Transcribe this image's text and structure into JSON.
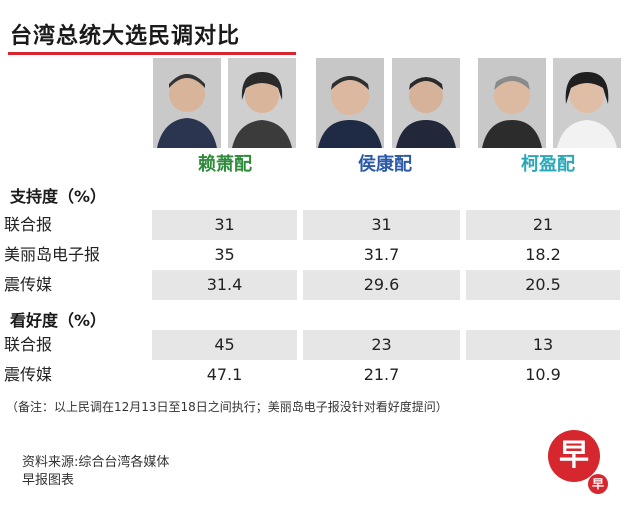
{
  "title": "台湾总统大选民调对比",
  "pairs": [
    "赖萧配",
    "侯康配",
    "柯盈配"
  ],
  "colors": {
    "accent": "#d6262e",
    "lai": "#2e8b3a",
    "hou": "#2c5aa8",
    "ko": "#2aa7b8",
    "row_shade": "#e6e6e6"
  },
  "support": {
    "heading": "支持度（%）",
    "rows": [
      {
        "label": "联合报",
        "values": [
          "31",
          "31",
          "21"
        ]
      },
      {
        "label": "美丽岛电子报",
        "values": [
          "35",
          "31.7",
          "18.2"
        ]
      },
      {
        "label": "震传媒",
        "values": [
          "31.4",
          "29.6",
          "20.5"
        ]
      }
    ]
  },
  "outlook": {
    "heading": "看好度（%）",
    "rows": [
      {
        "label": "联合报",
        "values": [
          "45",
          "23",
          "13"
        ]
      },
      {
        "label": "震传媒",
        "values": [
          "47.1",
          "21.7",
          "10.9"
        ]
      }
    ]
  },
  "note": "（备注：以上民调在12月13日至18日之间执行；美丽岛电子报没针对看好度提问）",
  "source": "资料来源:综合台湾各媒体",
  "credit": "早报图表",
  "logo": {
    "big": "早",
    "small": "早"
  }
}
